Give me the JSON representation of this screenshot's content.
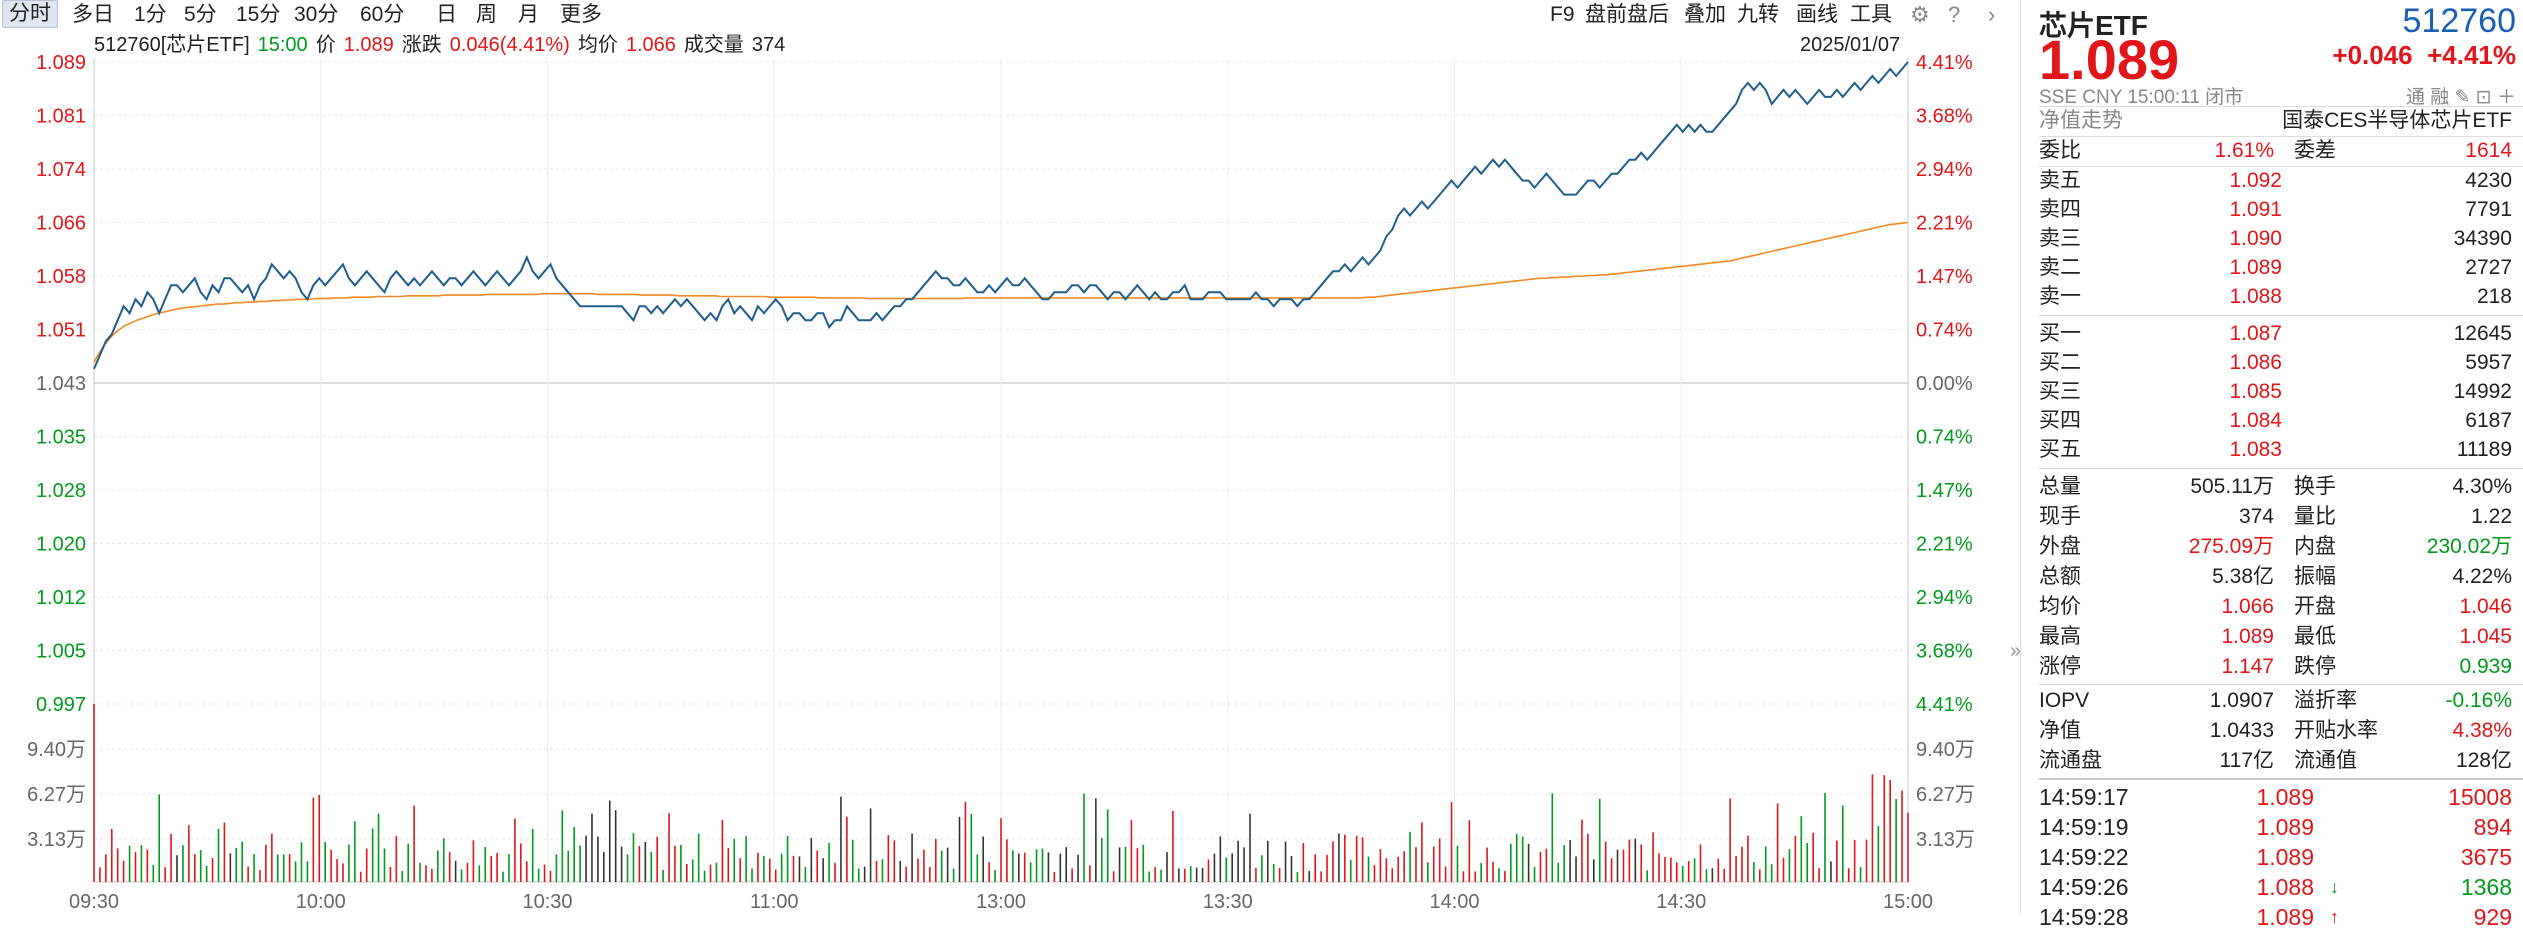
{
  "toolbar": {
    "periods": [
      "分时",
      "多日",
      "1分",
      "5分",
      "15分",
      "30分",
      "60分",
      "日",
      "周",
      "月",
      "更多"
    ],
    "active_period": "分时",
    "tools": [
      "F9",
      "盘前盘后",
      "叠加",
      "九转",
      "画线",
      "工具"
    ],
    "icons": [
      "gear-icon",
      "help-icon",
      "chevron-right-icon"
    ]
  },
  "info": {
    "code_name": "512760[芯片ETF]",
    "time": "15:00",
    "price_label": "价",
    "price": "1.089",
    "change_label": "涨跌",
    "change": "0.046(4.41%)",
    "avg_label": "均价",
    "avg": "1.066",
    "volume_label": "成交量",
    "volume": "374",
    "date": "2025/01/07"
  },
  "chart_data": {
    "type": "line",
    "x_ticks": [
      "09:30",
      "10:00",
      "10:30",
      "11:00",
      "13:00",
      "13:30",
      "14:00",
      "14:30",
      "15:00"
    ],
    "price_ticks_left": [
      "1.089",
      "1.081",
      "1.074",
      "1.066",
      "1.058",
      "1.051",
      "1.043",
      "1.035",
      "1.028",
      "1.020",
      "1.012",
      "1.005",
      "0.997"
    ],
    "pct_ticks_right": [
      "4.41%",
      "3.68%",
      "2.94%",
      "2.21%",
      "1.47%",
      "0.74%",
      "0.00%",
      "0.74%",
      "1.47%",
      "2.21%",
      "2.94%",
      "3.68%",
      "4.41%"
    ],
    "volume_ticks": [
      "9.40万",
      "6.27万",
      "3.13万"
    ],
    "ylim": [
      0.997,
      1.089
    ],
    "prev_close": 1.043,
    "colors": {
      "price": "#1f5f8b",
      "avg": "#f08a24",
      "up": "#e0161b",
      "down": "#009a1d",
      "neutral": "#333333"
    },
    "series": [
      {
        "name": "价",
        "values": [
          1.045,
          1.047,
          1.049,
          1.05,
          1.052,
          1.054,
          1.053,
          1.055,
          1.054,
          1.056,
          1.055,
          1.053,
          1.055,
          1.057,
          1.057,
          1.056,
          1.057,
          1.058,
          1.056,
          1.055,
          1.057,
          1.056,
          1.058,
          1.058,
          1.057,
          1.056,
          1.057,
          1.055,
          1.057,
          1.058,
          1.06,
          1.059,
          1.058,
          1.059,
          1.058,
          1.056,
          1.055,
          1.057,
          1.058,
          1.057,
          1.058,
          1.059,
          1.06,
          1.058,
          1.057,
          1.058,
          1.059,
          1.058,
          1.057,
          1.056,
          1.058,
          1.059,
          1.058,
          1.057,
          1.058,
          1.057,
          1.058,
          1.059,
          1.058,
          1.057,
          1.058,
          1.058,
          1.057,
          1.058,
          1.059,
          1.058,
          1.057,
          1.058,
          1.059,
          1.058,
          1.057,
          1.058,
          1.059,
          1.061,
          1.059,
          1.058,
          1.059,
          1.06,
          1.058,
          1.057,
          1.056,
          1.055,
          1.054,
          1.054,
          1.054,
          1.054,
          1.054,
          1.054,
          1.054,
          1.054,
          1.053,
          1.052,
          1.054,
          1.054,
          1.053,
          1.054,
          1.053,
          1.054,
          1.055,
          1.054,
          1.055,
          1.054,
          1.053,
          1.052,
          1.053,
          1.052,
          1.054,
          1.055,
          1.053,
          1.054,
          1.053,
          1.052,
          1.054,
          1.053,
          1.054,
          1.055,
          1.054,
          1.052,
          1.053,
          1.053,
          1.052,
          1.052,
          1.053,
          1.053,
          1.051,
          1.052,
          1.052,
          1.054,
          1.053,
          1.052,
          1.052,
          1.052,
          1.053,
          1.052,
          1.053,
          1.054,
          1.054,
          1.055,
          1.055,
          1.056,
          1.057,
          1.058,
          1.059,
          1.058,
          1.058,
          1.057,
          1.057,
          1.058,
          1.057,
          1.056,
          1.056,
          1.057,
          1.056,
          1.057,
          1.058,
          1.057,
          1.057,
          1.058,
          1.057,
          1.056,
          1.055,
          1.055,
          1.056,
          1.056,
          1.056,
          1.057,
          1.057,
          1.056,
          1.057,
          1.057,
          1.056,
          1.055,
          1.056,
          1.056,
          1.055,
          1.056,
          1.057,
          1.056,
          1.055,
          1.056,
          1.055,
          1.055,
          1.056,
          1.056,
          1.057,
          1.055,
          1.055,
          1.055,
          1.056,
          1.056,
          1.056,
          1.055,
          1.055,
          1.055,
          1.055,
          1.055,
          1.056,
          1.055,
          1.055,
          1.054,
          1.055,
          1.055,
          1.055,
          1.054,
          1.055,
          1.055,
          1.056,
          1.057,
          1.058,
          1.059,
          1.059,
          1.06,
          1.059,
          1.06,
          1.061,
          1.06,
          1.061,
          1.062,
          1.064,
          1.065,
          1.067,
          1.068,
          1.067,
          1.068,
          1.069,
          1.068,
          1.069,
          1.07,
          1.071,
          1.072,
          1.071,
          1.072,
          1.073,
          1.074,
          1.073,
          1.074,
          1.075,
          1.074,
          1.075,
          1.074,
          1.073,
          1.072,
          1.072,
          1.071,
          1.072,
          1.073,
          1.072,
          1.071,
          1.07,
          1.07,
          1.07,
          1.071,
          1.072,
          1.072,
          1.071,
          1.072,
          1.073,
          1.073,
          1.074,
          1.075,
          1.075,
          1.076,
          1.075,
          1.076,
          1.077,
          1.078,
          1.079,
          1.08,
          1.079,
          1.08,
          1.079,
          1.08,
          1.079,
          1.079,
          1.08,
          1.081,
          1.082,
          1.083,
          1.085,
          1.086,
          1.085,
          1.086,
          1.085,
          1.083,
          1.084,
          1.085,
          1.084,
          1.085,
          1.084,
          1.083,
          1.084,
          1.085,
          1.084,
          1.084,
          1.085,
          1.084,
          1.085,
          1.086,
          1.085,
          1.086,
          1.087,
          1.086,
          1.087,
          1.088,
          1.087,
          1.088,
          1.089
        ]
      },
      {
        "name": "均价",
        "values": [
          1.046,
          1.0475,
          1.0488,
          1.0498,
          1.0506,
          1.0512,
          1.0516,
          1.052,
          1.0523,
          1.0526,
          1.0529,
          1.0531,
          1.0533,
          1.0535,
          1.0537,
          1.0538,
          1.0539,
          1.054,
          1.0541,
          1.0542,
          1.0543,
          1.0543,
          1.0544,
          1.0545,
          1.0545,
          1.0546,
          1.0546,
          1.0547,
          1.0547,
          1.0548,
          1.0548,
          1.0549,
          1.0549,
          1.055,
          1.055,
          1.055,
          1.0551,
          1.0551,
          1.0551,
          1.0552,
          1.0552,
          1.0552,
          1.0553,
          1.0553,
          1.0553,
          1.0553,
          1.0554,
          1.0554,
          1.0554,
          1.0554,
          1.0554,
          1.0555,
          1.0555,
          1.0555,
          1.0555,
          1.0555,
          1.0555,
          1.0556,
          1.0556,
          1.0556,
          1.0556,
          1.0556,
          1.0556,
          1.0556,
          1.0557,
          1.0557,
          1.0557,
          1.0557,
          1.0557,
          1.0557,
          1.0557,
          1.0557,
          1.0557,
          1.0558,
          1.0558,
          1.0558,
          1.0558,
          1.0558,
          1.0558,
          1.0558,
          1.0558,
          1.0558,
          1.0557,
          1.0557,
          1.0557,
          1.0557,
          1.0557,
          1.0557,
          1.0557,
          1.0556,
          1.0556,
          1.0556,
          1.0556,
          1.0556,
          1.0556,
          1.0555,
          1.0555,
          1.0555,
          1.0555,
          1.0555,
          1.0555,
          1.0555,
          1.0554,
          1.0554,
          1.0554,
          1.0554,
          1.0554,
          1.0554,
          1.0554,
          1.0554,
          1.0553,
          1.0553,
          1.0553,
          1.0553,
          1.0553,
          1.0553,
          1.0553,
          1.0553,
          1.0552,
          1.0552,
          1.0552,
          1.0552,
          1.0552,
          1.0552,
          1.0552,
          1.0552,
          1.0551,
          1.0551,
          1.0551,
          1.0551,
          1.0551,
          1.0551,
          1.0551,
          1.0551,
          1.0551,
          1.0551,
          1.0551,
          1.0551,
          1.0551,
          1.0551,
          1.0551,
          1.0551,
          1.0552,
          1.0552,
          1.0552,
          1.0552,
          1.0552,
          1.0552,
          1.0552,
          1.0552,
          1.0552,
          1.0552,
          1.0552,
          1.0552,
          1.0552,
          1.0552,
          1.0552,
          1.0552,
          1.0552,
          1.0552,
          1.0552,
          1.0552,
          1.0552,
          1.0552,
          1.0552,
          1.0552,
          1.0552,
          1.0552,
          1.0552,
          1.0552,
          1.0552,
          1.0552,
          1.0552,
          1.0552,
          1.0552,
          1.0552,
          1.0552,
          1.0552,
          1.0552,
          1.0552,
          1.0552,
          1.0552,
          1.0552,
          1.0552,
          1.0552,
          1.0552,
          1.0552,
          1.0552,
          1.0552,
          1.0552,
          1.0552,
          1.0552,
          1.0552,
          1.0552,
          1.0552,
          1.0552,
          1.0552,
          1.0552,
          1.0552,
          1.0552,
          1.0552,
          1.0552,
          1.0552,
          1.0552,
          1.0552,
          1.0552,
          1.0552,
          1.0553,
          1.0553,
          1.0554,
          1.0555,
          1.0556,
          1.0557,
          1.0558,
          1.0559,
          1.056,
          1.0561,
          1.0562,
          1.0563,
          1.0564,
          1.0565,
          1.0566,
          1.0567,
          1.0568,
          1.0569,
          1.057,
          1.0571,
          1.0572,
          1.0573,
          1.0574,
          1.0575,
          1.0576,
          1.0577,
          1.0578,
          1.0579,
          1.058,
          1.058,
          1.0581,
          1.0581,
          1.0582,
          1.0582,
          1.0583,
          1.0583,
          1.0584,
          1.0584,
          1.0585,
          1.0585,
          1.0586,
          1.0587,
          1.0588,
          1.0589,
          1.059,
          1.0591,
          1.0592,
          1.0593,
          1.0594,
          1.0595,
          1.0596,
          1.0597,
          1.0598,
          1.0599,
          1.06,
          1.0601,
          1.0602,
          1.0603,
          1.0604,
          1.0605,
          1.0607,
          1.0609,
          1.0611,
          1.0613,
          1.0615,
          1.0617,
          1.0619,
          1.0621,
          1.0623,
          1.0625,
          1.0627,
          1.0629,
          1.0631,
          1.0633,
          1.0635,
          1.0637,
          1.0639,
          1.0641,
          1.0643,
          1.0645,
          1.0647,
          1.0649,
          1.0651,
          1.0653,
          1.0655,
          1.0657,
          1.0658,
          1.0659,
          1.066
        ]
      }
    ],
    "volume_scale_max": 94000
  },
  "panel": {
    "name": "芯片ETF",
    "code": "512760",
    "price": "1.089",
    "change": "+0.046",
    "change_pct": "+4.41%",
    "sub": "SSE  CNY  15:00:11  闭市",
    "sub_icons": "通  融",
    "net_value_label": "净值走势",
    "fund_name": "国泰CES半导体芯片ETF",
    "commission": {
      "ratio_label": "委比",
      "ratio": "1.61%",
      "diff_label": "委差",
      "diff": "1614"
    },
    "asks": [
      {
        "label": "卖五",
        "price": "1.092",
        "vol": "4230"
      },
      {
        "label": "卖四",
        "price": "1.091",
        "vol": "7791"
      },
      {
        "label": "卖三",
        "price": "1.090",
        "vol": "34390"
      },
      {
        "label": "卖二",
        "price": "1.089",
        "vol": "2727"
      },
      {
        "label": "卖一",
        "price": "1.088",
        "vol": "218"
      }
    ],
    "bids": [
      {
        "label": "买一",
        "price": "1.087",
        "vol": "12645"
      },
      {
        "label": "买二",
        "price": "1.086",
        "vol": "5957"
      },
      {
        "label": "买三",
        "price": "1.085",
        "vol": "14992"
      },
      {
        "label": "买四",
        "price": "1.084",
        "vol": "6187"
      },
      {
        "label": "买五",
        "price": "1.083",
        "vol": "11189"
      }
    ],
    "stats": [
      {
        "l1": "总量",
        "v1": "505.11万",
        "c1": "black",
        "l2": "换手",
        "v2": "4.30%",
        "c2": "black"
      },
      {
        "l1": "现手",
        "v1": "374",
        "c1": "black",
        "l2": "量比",
        "v2": "1.22",
        "c2": "black"
      },
      {
        "l1": "外盘",
        "v1": "275.09万",
        "c1": "red",
        "l2": "内盘",
        "v2": "230.02万",
        "c2": "green"
      },
      {
        "l1": "总额",
        "v1": "5.38亿",
        "c1": "black",
        "l2": "振幅",
        "v2": "4.22%",
        "c2": "black"
      },
      {
        "l1": "均价",
        "v1": "1.066",
        "c1": "red",
        "l2": "开盘",
        "v2": "1.046",
        "c2": "red"
      },
      {
        "l1": "最高",
        "v1": "1.089",
        "c1": "red",
        "l2": "最低",
        "v2": "1.045",
        "c2": "red"
      },
      {
        "l1": "涨停",
        "v1": "1.147",
        "c1": "red",
        "l2": "跌停",
        "v2": "0.939",
        "c2": "green"
      }
    ],
    "fund_stats": [
      {
        "l1": "IOPV",
        "v1": "1.0907",
        "c1": "black",
        "l2": "溢折率",
        "v2": "-0.16%",
        "c2": "green"
      },
      {
        "l1": "净值",
        "v1": "1.0433",
        "c1": "black",
        "l2": "开贴水率",
        "v2": "4.38%",
        "c2": "red"
      },
      {
        "l1": "流通盘",
        "v1": "117亿",
        "c1": "black",
        "l2": "流通值",
        "v2": "128亿",
        "c2": "black"
      }
    ],
    "ticks": [
      {
        "time": "14:59:17",
        "price": "1.089",
        "arrow": "",
        "vol": "15008",
        "vc": "red"
      },
      {
        "time": "14:59:19",
        "price": "1.089",
        "arrow": "",
        "vol": "894",
        "vc": "red"
      },
      {
        "time": "14:59:22",
        "price": "1.089",
        "arrow": "",
        "vol": "3675",
        "vc": "red"
      },
      {
        "time": "14:59:26",
        "price": "1.088",
        "arrow": "↓",
        "vol": "1368",
        "vc": "green"
      },
      {
        "time": "14:59:28",
        "price": "1.089",
        "arrow": "↑",
        "vol": "929",
        "vc": "red"
      }
    ]
  }
}
